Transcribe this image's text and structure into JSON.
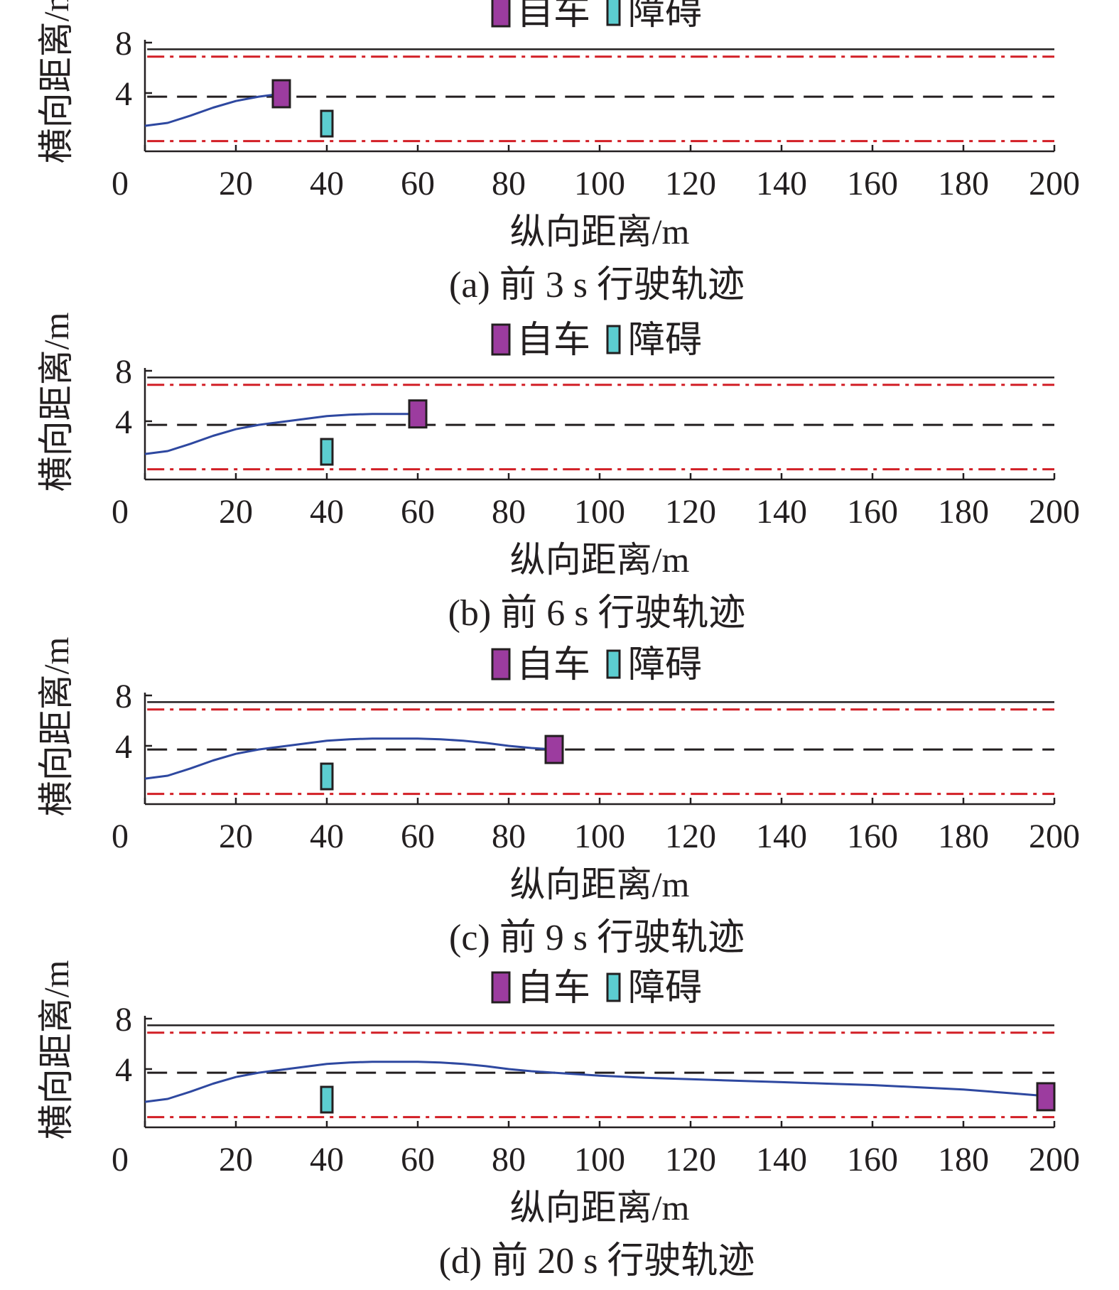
{
  "figure": {
    "legend": {
      "ego_label": "自车",
      "obstacle_label": "障碍"
    },
    "colors": {
      "ego": "#9c3c9f",
      "obstacle": "#5ccdd0",
      "trajectory": "#2e48a0",
      "lane_center": "#231f20",
      "lane_boundary": "#d21f26",
      "road_edge": "#231f20"
    },
    "icons": {
      "ego": "purple-rectangle",
      "obstacle": "cyan-rectangle"
    }
  },
  "chart_data": [
    {
      "type": "line",
      "caption": "(a) 前 3 s 行驶轨迹",
      "xlabel": "纵向距离/m",
      "ylabel": "横向距离/m",
      "xlim": [
        0,
        200
      ],
      "ylim": [
        0,
        8
      ],
      "xticks": [
        "0",
        "20",
        "40",
        "60",
        "80",
        "100",
        "120",
        "140",
        "160",
        "180",
        "200"
      ],
      "yticks": [
        "4",
        "8"
      ],
      "reference_lines": {
        "road_top": 7.0,
        "boundary_top": 6.5,
        "center": 3.75,
        "boundary_bottom": 0.7
      },
      "trajectory": {
        "x": [
          0,
          5,
          10,
          15,
          20,
          25,
          30
        ],
        "y": [
          1.75,
          1.95,
          2.45,
          3.0,
          3.45,
          3.75,
          3.95
        ]
      },
      "ego": {
        "x": 30,
        "y": 3.95
      },
      "obstacle": {
        "x": 40,
        "y": 1.9
      }
    },
    {
      "type": "line",
      "caption": "(b) 前 6 s 行驶轨迹",
      "xlabel": "纵向距离/m",
      "ylabel": "横向距离/m",
      "xlim": [
        0,
        200
      ],
      "ylim": [
        0,
        8
      ],
      "xticks": [
        "0",
        "20",
        "40",
        "60",
        "80",
        "100",
        "120",
        "140",
        "160",
        "180",
        "200"
      ],
      "yticks": [
        "4",
        "8"
      ],
      "reference_lines": {
        "road_top": 7.0,
        "boundary_top": 6.5,
        "center": 3.75,
        "boundary_bottom": 0.7
      },
      "trajectory": {
        "x": [
          0,
          5,
          10,
          15,
          20,
          25,
          30,
          35,
          40,
          45,
          50,
          55,
          60
        ],
        "y": [
          1.75,
          1.95,
          2.45,
          3.0,
          3.45,
          3.75,
          3.95,
          4.15,
          4.35,
          4.45,
          4.5,
          4.5,
          4.5
        ]
      },
      "ego": {
        "x": 60,
        "y": 4.5
      },
      "obstacle": {
        "x": 40,
        "y": 1.9
      }
    },
    {
      "type": "line",
      "caption": "(c) 前 9 s 行驶轨迹",
      "xlabel": "纵向距离/m",
      "ylabel": "横向距离/m",
      "xlim": [
        0,
        200
      ],
      "ylim": [
        0,
        8
      ],
      "xticks": [
        "0",
        "20",
        "40",
        "60",
        "80",
        "100",
        "120",
        "140",
        "160",
        "180",
        "200"
      ],
      "yticks": [
        "4",
        "8"
      ],
      "reference_lines": {
        "road_top": 7.0,
        "boundary_top": 6.5,
        "center": 3.75,
        "boundary_bottom": 0.7
      },
      "trajectory": {
        "x": [
          0,
          5,
          10,
          15,
          20,
          25,
          30,
          35,
          40,
          45,
          50,
          55,
          60,
          65,
          70,
          75,
          80,
          85,
          90
        ],
        "y": [
          1.75,
          1.95,
          2.45,
          3.0,
          3.45,
          3.75,
          3.95,
          4.15,
          4.35,
          4.45,
          4.5,
          4.5,
          4.5,
          4.45,
          4.35,
          4.2,
          4.0,
          3.85,
          3.75
        ]
      },
      "ego": {
        "x": 90,
        "y": 3.75
      },
      "obstacle": {
        "x": 40,
        "y": 1.9
      }
    },
    {
      "type": "line",
      "caption": "(d) 前 20 s 行驶轨迹",
      "xlabel": "纵向距离/m",
      "ylabel": "横向距离/m",
      "xlim": [
        0,
        200
      ],
      "ylim": [
        0,
        8
      ],
      "xticks": [
        "0",
        "20",
        "40",
        "60",
        "80",
        "100",
        "120",
        "140",
        "160",
        "180",
        "200"
      ],
      "yticks": [
        "4",
        "8"
      ],
      "reference_lines": {
        "road_top": 7.0,
        "boundary_top": 6.5,
        "center": 3.75,
        "boundary_bottom": 0.7
      },
      "trajectory": {
        "x": [
          0,
          5,
          10,
          15,
          20,
          25,
          30,
          35,
          40,
          45,
          50,
          55,
          60,
          65,
          70,
          75,
          80,
          85,
          90,
          100,
          110,
          120,
          130,
          140,
          150,
          160,
          170,
          180,
          190,
          200
        ],
        "y": [
          1.75,
          1.95,
          2.45,
          3.0,
          3.45,
          3.75,
          3.95,
          4.15,
          4.35,
          4.45,
          4.5,
          4.5,
          4.5,
          4.45,
          4.35,
          4.2,
          4.0,
          3.85,
          3.75,
          3.55,
          3.4,
          3.3,
          3.2,
          3.1,
          3.0,
          2.9,
          2.75,
          2.6,
          2.35,
          2.1
        ]
      },
      "ego": {
        "x": 200,
        "y": 2.1
      },
      "obstacle": {
        "x": 40,
        "y": 1.9
      }
    }
  ]
}
